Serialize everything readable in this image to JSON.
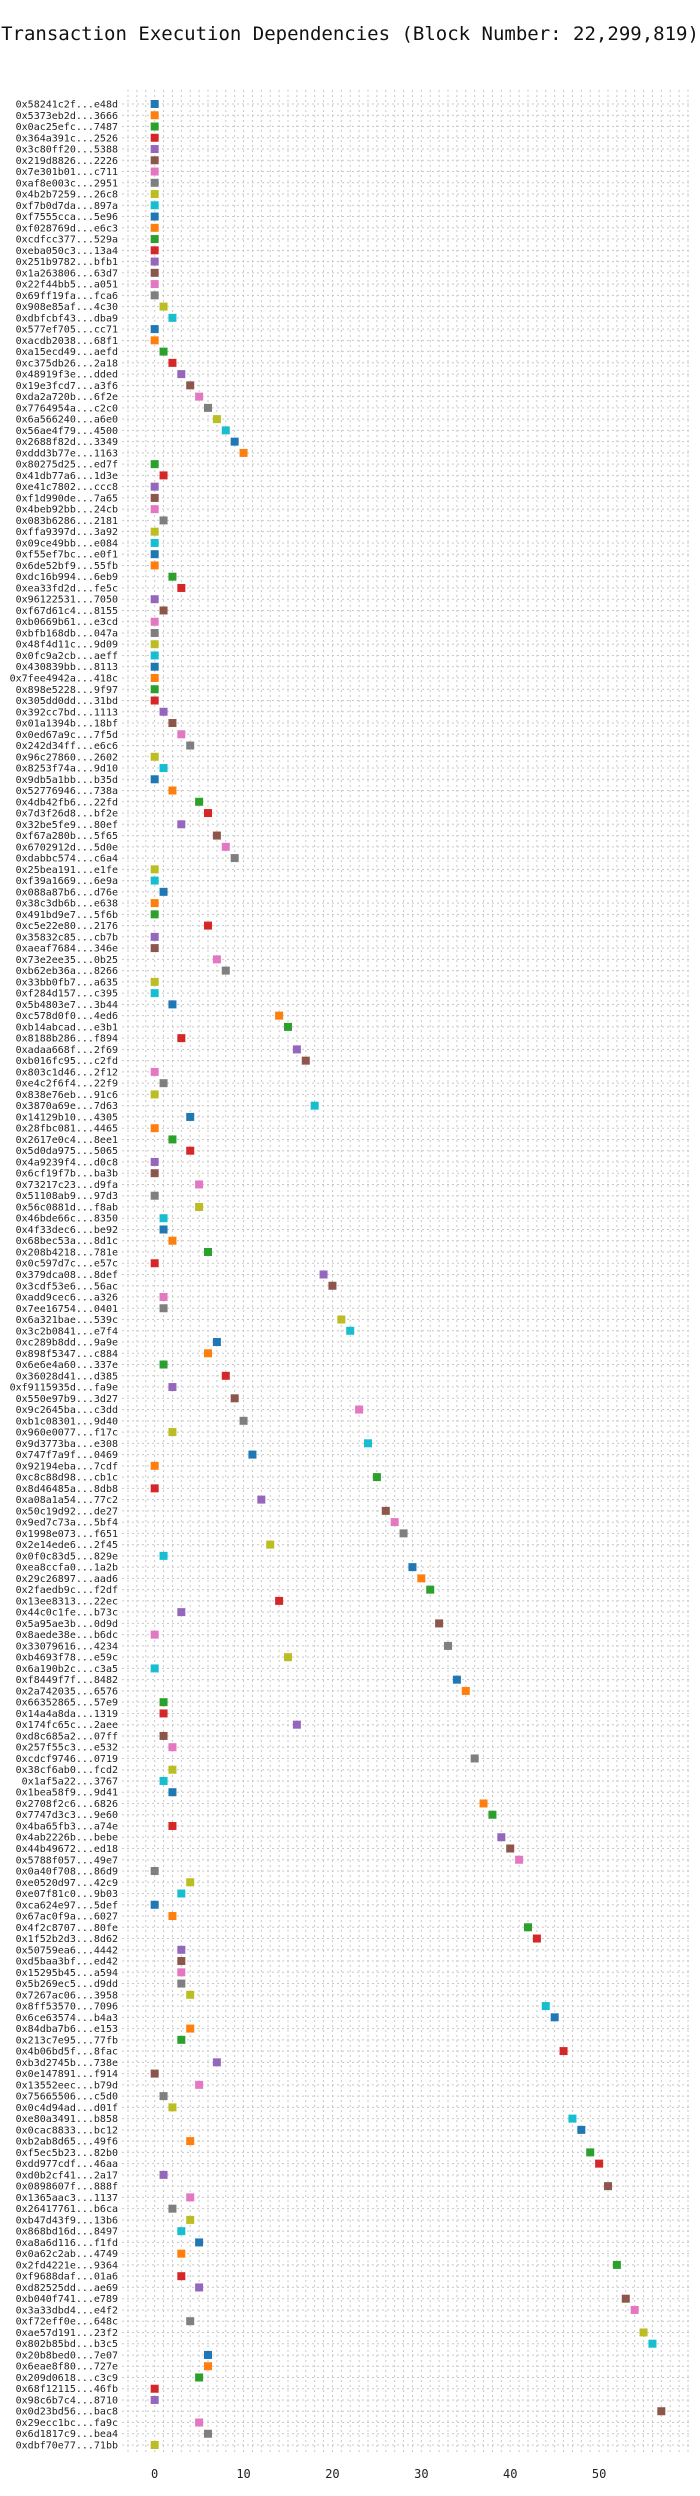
{
  "chart_data": {
    "type": "scatter",
    "title": "Transaction Execution Dependencies (Block Number: 22,299,819)",
    "xlabel": "",
    "ylabel": "",
    "xlim": [
      -3,
      60
    ],
    "xticks": [
      0,
      10,
      20,
      30,
      40,
      50
    ],
    "grid": true,
    "marker": "square",
    "palette": [
      "#1f77b4",
      "#ff7f0e",
      "#2ca02c",
      "#d62728",
      "#9467bd",
      "#8c564b",
      "#e377c2",
      "#7f7f7f",
      "#bcbd22",
      "#17becf"
    ],
    "transactions": [
      {
        "label": "0x58241c2f...e48d",
        "x": 0
      },
      {
        "label": "0x5373eb2d...3666",
        "x": 0
      },
      {
        "label": "0x0ac25efc...7487",
        "x": 0
      },
      {
        "label": "0x364a391c...2526",
        "x": 0
      },
      {
        "label": "0x3c80ff20...5388",
        "x": 0
      },
      {
        "label": "0x219d8826...2226",
        "x": 0
      },
      {
        "label": "0x7e301b01...c711",
        "x": 0
      },
      {
        "label": "0xaf8e003c...2951",
        "x": 0
      },
      {
        "label": "0x4b2b7259...26c8",
        "x": 0
      },
      {
        "label": "0xf7b0d7da...897a",
        "x": 0
      },
      {
        "label": "0xf7555cca...5e96",
        "x": 0
      },
      {
        "label": "0xf028769d...e6c3",
        "x": 0
      },
      {
        "label": "0xcdfcc377...529a",
        "x": 0
      },
      {
        "label": "0xeba050c3...13a4",
        "x": 0
      },
      {
        "label": "0x251b9782...bfb1",
        "x": 0
      },
      {
        "label": "0x1a263806...63d7",
        "x": 0
      },
      {
        "label": "0x22f44bb5...a051",
        "x": 0
      },
      {
        "label": "0x69ff19fa...fca6",
        "x": 0
      },
      {
        "label": "0x908e85af...4c30",
        "x": 1
      },
      {
        "label": "0xdbfcbf43...dba9",
        "x": 2
      },
      {
        "label": "0x577ef705...cc71",
        "x": 0
      },
      {
        "label": "0xacdb2038...68f1",
        "x": 0
      },
      {
        "label": "0xa15ecd49...aefd",
        "x": 1
      },
      {
        "label": "0xc375db26...2a18",
        "x": 2
      },
      {
        "label": "0x48919f3e...dded",
        "x": 3
      },
      {
        "label": "0x19e3fcd7...a3f6",
        "x": 4
      },
      {
        "label": "0xda2a720b...6f2e",
        "x": 5
      },
      {
        "label": "0x7764954a...c2c0",
        "x": 6
      },
      {
        "label": "0x6a566240...a6e0",
        "x": 7
      },
      {
        "label": "0x56ae4f79...4500",
        "x": 8
      },
      {
        "label": "0x2688f82d...3349",
        "x": 9
      },
      {
        "label": "0xddd3b77e...1163",
        "x": 10
      },
      {
        "label": "0x80275d25...ed7f",
        "x": 0
      },
      {
        "label": "0x41db77a6...1d3e",
        "x": 1
      },
      {
        "label": "0xe41c7802...ccc8",
        "x": 0
      },
      {
        "label": "0xf1d990de...7a65",
        "x": 0
      },
      {
        "label": "0x4beb92bb...24cb",
        "x": 0
      },
      {
        "label": "0x083b6286...2181",
        "x": 1
      },
      {
        "label": "0xffa9397d...3a92",
        "x": 0
      },
      {
        "label": "0x09ce49bb...e084",
        "x": 0
      },
      {
        "label": "0xf55ef7bc...e0f1",
        "x": 0
      },
      {
        "label": "0x6de52bf9...55fb",
        "x": 0
      },
      {
        "label": "0xdc16b994...6eb9",
        "x": 2
      },
      {
        "label": "0xea33fd2d...fe5c",
        "x": 3
      },
      {
        "label": "0x96122531...7050",
        "x": 0
      },
      {
        "label": "0xf67d61c4...8155",
        "x": 1
      },
      {
        "label": "0xb0669b61...e3cd",
        "x": 0
      },
      {
        "label": "0xbfb168db...047a",
        "x": 0
      },
      {
        "label": "0x48f4d11c...9d09",
        "x": 0
      },
      {
        "label": "0x0fc9a2cb...aeff",
        "x": 0
      },
      {
        "label": "0x430839bb...8113",
        "x": 0
      },
      {
        "label": "0x7fee4942a...418c",
        "x": 0
      },
      {
        "label": "0x898e5228...9f97",
        "x": 0
      },
      {
        "label": "0x305dd0dd...31bd",
        "x": 0
      },
      {
        "label": "0x392cc7bd...1113",
        "x": 1
      },
      {
        "label": "0x01a1394b...18bf",
        "x": 2
      },
      {
        "label": "0x0ed67a9c...7f5d",
        "x": 3
      },
      {
        "label": "0x242d34ff...e6c6",
        "x": 4
      },
      {
        "label": "0x96c27860...2602",
        "x": 0
      },
      {
        "label": "0x8253f74a...9d10",
        "x": 1
      },
      {
        "label": "0x9db5a1bb...b35d",
        "x": 0
      },
      {
        "label": "0x52776946...738a",
        "x": 2
      },
      {
        "label": "0x4db42fb6...22fd",
        "x": 5
      },
      {
        "label": "0x7d3f26d8...bf2e",
        "x": 6
      },
      {
        "label": "0x32be5fe9...80ef",
        "x": 3
      },
      {
        "label": "0xf67a280b...5f65",
        "x": 7
      },
      {
        "label": "0x6702912d...5d0e",
        "x": 8
      },
      {
        "label": "0xdabbc574...c6a4",
        "x": 9
      },
      {
        "label": "0x25bea191...e1fe",
        "x": 0
      },
      {
        "label": "0xf39a1669...6e9a",
        "x": 0
      },
      {
        "label": "0x088a87b6...d76e",
        "x": 1
      },
      {
        "label": "0x38c3db6b...e638",
        "x": 0
      },
      {
        "label": "0x491bd9e7...5f6b",
        "x": 0
      },
      {
        "label": "0xc5e22e80...2176",
        "x": 6
      },
      {
        "label": "0x35832c85...cb7b",
        "x": 0
      },
      {
        "label": "0xaeaf7684...346e",
        "x": 0
      },
      {
        "label": "0x73e2ee35...0b25",
        "x": 7
      },
      {
        "label": "0xb62eb36a...8266",
        "x": 8
      },
      {
        "label": "0x33bb0fb7...a635",
        "x": 0
      },
      {
        "label": "0xf284d157...c395",
        "x": 0
      },
      {
        "label": "0x5b4803e7...3b44",
        "x": 2
      },
      {
        "label": "0xc578d0f0...4ed6",
        "x": 14
      },
      {
        "label": "0xb14abcad...e3b1",
        "x": 15
      },
      {
        "label": "0x8188b286...f894",
        "x": 3
      },
      {
        "label": "0xadaa668f...2f69",
        "x": 16
      },
      {
        "label": "0xb016fc95...c2fd",
        "x": 17
      },
      {
        "label": "0x803c1d46...2f12",
        "x": 0
      },
      {
        "label": "0xe4c2f6f4...22f9",
        "x": 1
      },
      {
        "label": "0x838e76eb...91c6",
        "x": 0
      },
      {
        "label": "0x3870a69e...7d63",
        "x": 18
      },
      {
        "label": "0x14129b10...4305",
        "x": 4
      },
      {
        "label": "0x28fbc081...4465",
        "x": 0
      },
      {
        "label": "0x2617e0c4...8ee1",
        "x": 2
      },
      {
        "label": "0x5d0da975...5065",
        "x": 4
      },
      {
        "label": "0x4a9239f4...d0c8",
        "x": 0
      },
      {
        "label": "0x6cf19f7b...ba3b",
        "x": 0
      },
      {
        "label": "0x73217c23...d9fa",
        "x": 5
      },
      {
        "label": "0x51108ab9...97d3",
        "x": 0
      },
      {
        "label": "0x56c0881d...f8ab",
        "x": 5
      },
      {
        "label": "0x46bde66c...8350",
        "x": 1
      },
      {
        "label": "0x4f33dec6...be92",
        "x": 1
      },
      {
        "label": "0x68bec53a...8d1c",
        "x": 2
      },
      {
        "label": "0x208b4218...781e",
        "x": 6
      },
      {
        "label": "0x0c597d7c...e57c",
        "x": 0
      },
      {
        "label": "0x379dca08...8def",
        "x": 19
      },
      {
        "label": "0x3cdf53e6...56ac",
        "x": 20
      },
      {
        "label": "0xadd9cec6...a326",
        "x": 1
      },
      {
        "label": "0x7ee16754...0401",
        "x": 1
      },
      {
        "label": "0x6a321bae...539c",
        "x": 21
      },
      {
        "label": "0x3c2b0841...e7f4",
        "x": 22
      },
      {
        "label": "0xc289b8dd...9a9e",
        "x": 7
      },
      {
        "label": "0x898f5347...c884",
        "x": 6
      },
      {
        "label": "0x6e6e4a60...337e",
        "x": 1
      },
      {
        "label": "0x36028d41...d385",
        "x": 8
      },
      {
        "label": "0xf9115935d...fa9e",
        "x": 2
      },
      {
        "label": "0x550e97b9...3d27",
        "x": 9
      },
      {
        "label": "0x9c2645ba...c3dd",
        "x": 23
      },
      {
        "label": "0xb1c08301...9d40",
        "x": 10
      },
      {
        "label": "0x960e0077...f17c",
        "x": 2
      },
      {
        "label": "0x9d3773ba...e308",
        "x": 24
      },
      {
        "label": "0x747f7a9f...0469",
        "x": 11
      },
      {
        "label": "0x92194eba...7cdf",
        "x": 0
      },
      {
        "label": "0xc8c88d98...cb1c",
        "x": 25
      },
      {
        "label": "0x8d46485a...8db8",
        "x": 0
      },
      {
        "label": "0xa08a1a54...77c2",
        "x": 12
      },
      {
        "label": "0x50c19d92...de27",
        "x": 26
      },
      {
        "label": "0x9ed7c73a...5bf4",
        "x": 27
      },
      {
        "label": "0x1998e073...f651",
        "x": 28
      },
      {
        "label": "0x2e14ede6...2f45",
        "x": 13
      },
      {
        "label": "0x0f0c83d5...829e",
        "x": 1
      },
      {
        "label": "0xea8ccfa0...1a2b",
        "x": 29
      },
      {
        "label": "0x29c26897...aad6",
        "x": 30
      },
      {
        "label": "0x2faedb9c...f2df",
        "x": 31
      },
      {
        "label": "0x13ee8313...22ec",
        "x": 14
      },
      {
        "label": "0x44c0c1fe...b73c",
        "x": 3
      },
      {
        "label": "0x5a95ae3b...0d9d",
        "x": 32
      },
      {
        "label": "0x8aede38e...b6dc",
        "x": 0
      },
      {
        "label": "0x33079616...4234",
        "x": 33
      },
      {
        "label": "0xb4693f78...e59c",
        "x": 15
      },
      {
        "label": "0x6a190b2c...c3a5",
        "x": 0
      },
      {
        "label": "0xf8449f7f...8482",
        "x": 34
      },
      {
        "label": "0x2a742035...6576",
        "x": 35
      },
      {
        "label": "0x66352865...57e9",
        "x": 1
      },
      {
        "label": "0x14a4a8da...1319",
        "x": 1
      },
      {
        "label": "0x174fc65c...2aee",
        "x": 16
      },
      {
        "label": "0xd8c685a2...07ff",
        "x": 1
      },
      {
        "label": "0x257f55c3...e532",
        "x": 2
      },
      {
        "label": "0xcdcf9746...0719",
        "x": 36
      },
      {
        "label": "0x38cf6ab0...fcd2",
        "x": 2
      },
      {
        "label": "0x1af5a22...3767",
        "x": 1
      },
      {
        "label": "0x1bea58f9...9d41",
        "x": 2
      },
      {
        "label": "0x2708f2c6...6826",
        "x": 37
      },
      {
        "label": "0x7747d3c3...9e60",
        "x": 38
      },
      {
        "label": "0x4ba65fb3...a74e",
        "x": 2
      },
      {
        "label": "0x4ab2226b...bebe",
        "x": 39
      },
      {
        "label": "0x44b49672...ed18",
        "x": 40
      },
      {
        "label": "0x5788f057...49e7",
        "x": 41
      },
      {
        "label": "0x0a40f708...86d9",
        "x": 0
      },
      {
        "label": "0xe0520d97...42c9",
        "x": 4
      },
      {
        "label": "0xe07f81c0...9b03",
        "x": 3
      },
      {
        "label": "0xca624e97...5def",
        "x": 0
      },
      {
        "label": "0x67ac0f9a...6027",
        "x": 2
      },
      {
        "label": "0x4f2c8707...80fe",
        "x": 42
      },
      {
        "label": "0x1f52b2d3...8d62",
        "x": 43
      },
      {
        "label": "0x50759ea6...4442",
        "x": 3
      },
      {
        "label": "0xd5baa3bf...ed42",
        "x": 3
      },
      {
        "label": "0x15295b45...a594",
        "x": 3
      },
      {
        "label": "0x5b269ec5...d9dd",
        "x": 3
      },
      {
        "label": "0x7267ac06...3958",
        "x": 4
      },
      {
        "label": "0x8ff53570...7096",
        "x": 44
      },
      {
        "label": "0x6ce63574...b4a3",
        "x": 45
      },
      {
        "label": "0x84dba7b6...e153",
        "x": 4
      },
      {
        "label": "0x213c7e95...77fb",
        "x": 3
      },
      {
        "label": "0x4b06bd5f...8fac",
        "x": 46
      },
      {
        "label": "0xb3d2745b...738e",
        "x": 7
      },
      {
        "label": "0x0e147891...f914",
        "x": 0
      },
      {
        "label": "0x13552eec...b79d",
        "x": 5
      },
      {
        "label": "0x75665506...c5d0",
        "x": 1
      },
      {
        "label": "0x0c4d94ad...d01f",
        "x": 2
      },
      {
        "label": "0xe80a3491...b858",
        "x": 47
      },
      {
        "label": "0x0cac8833...bc12",
        "x": 48
      },
      {
        "label": "0xb2ab8d65...49f6",
        "x": 4
      },
      {
        "label": "0xf5ec5b23...82b0",
        "x": 49
      },
      {
        "label": "0xdd977cdf...46aa",
        "x": 50
      },
      {
        "label": "0xd0b2cf41...2a17",
        "x": 1
      },
      {
        "label": "0x0898607f...888f",
        "x": 51
      },
      {
        "label": "0x1365aac3...1137",
        "x": 4
      },
      {
        "label": "0x26417761...b6ca",
        "x": 2
      },
      {
        "label": "0xb47d43f9...13b6",
        "x": 4
      },
      {
        "label": "0x868bd16d...8497",
        "x": 3
      },
      {
        "label": "0xa8a6d116...f1fd",
        "x": 5
      },
      {
        "label": "0x0a62c2ab...4749",
        "x": 3
      },
      {
        "label": "0x2fd4221e...9364",
        "x": 52
      },
      {
        "label": "0xf9688daf...01a6",
        "x": 3
      },
      {
        "label": "0xd82525dd...ae69",
        "x": 5
      },
      {
        "label": "0xb040f741...e789",
        "x": 53
      },
      {
        "label": "0x3a33dbd4...e4f2",
        "x": 54
      },
      {
        "label": "0xf72eff0e...648c",
        "x": 4
      },
      {
        "label": "0xae57d191...23f2",
        "x": 55
      },
      {
        "label": "0x802b85bd...b3c5",
        "x": 56
      },
      {
        "label": "0x20b8bed0...7e07",
        "x": 6
      },
      {
        "label": "0x6eae8f80...727e",
        "x": 6
      },
      {
        "label": "0x209d0618...c3c9",
        "x": 5
      },
      {
        "label": "0x68f12115...46fb",
        "x": 0
      },
      {
        "label": "0x98c6b7c4...8710",
        "x": 0
      },
      {
        "label": "0x0d23bd56...bac8",
        "x": 57
      },
      {
        "label": "0x29ecc1bc...fa9c",
        "x": 5
      },
      {
        "label": "0x6d1817c9...bea4",
        "x": 6
      },
      {
        "label": "0xdbf70e77...71bb",
        "x": 0
      }
    ]
  }
}
